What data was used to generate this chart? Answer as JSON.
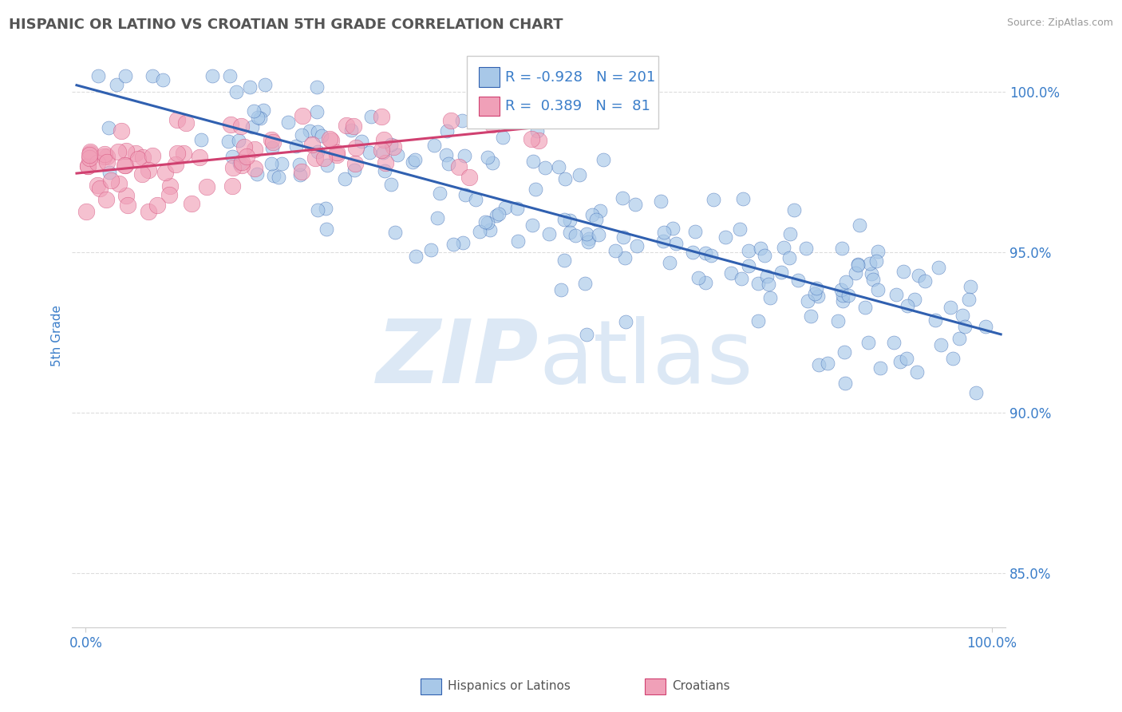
{
  "title": "HISPANIC OR LATINO VS CROATIAN 5TH GRADE CORRELATION CHART",
  "source_text": "Source: ZipAtlas.com",
  "ylabel": "5th Grade",
  "blue_R": -0.928,
  "blue_N": 201,
  "pink_R": 0.389,
  "pink_N": 81,
  "blue_color": "#a8c8e8",
  "pink_color": "#f0a0b8",
  "blue_line_color": "#3060b0",
  "pink_line_color": "#d04070",
  "title_color": "#555555",
  "axis_label_color": "#3a7dc9",
  "background_color": "#ffffff",
  "grid_color": "#dddddd",
  "watermark_color": "#dce8f5",
  "x_min": 0.0,
  "x_max": 1.0,
  "y_min": 0.833,
  "y_max": 1.015,
  "y_ticks": [
    0.85,
    0.9,
    0.95,
    1.0
  ],
  "y_tick_labels": [
    "85.0%",
    "90.0%",
    "95.0%",
    "100.0%"
  ],
  "x_tick_labels_vals": [
    0.0,
    1.0
  ],
  "x_tick_labels": [
    "0.0%",
    "100.0%"
  ],
  "legend_label1": "Hispanics or Latinos",
  "legend_label2": "Croatians"
}
